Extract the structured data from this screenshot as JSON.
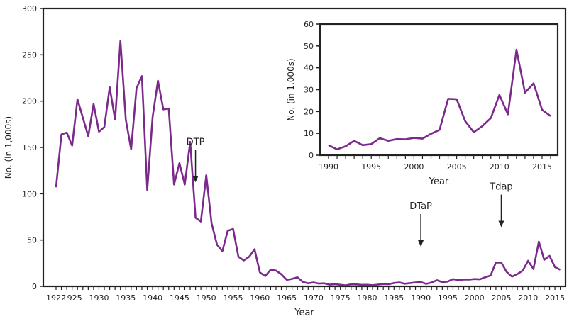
{
  "chart_data": [
    {
      "type": "line",
      "xlabel": "Year",
      "ylabel": "No. (in 1,000s)",
      "xlim": [
        1922,
        2016
      ],
      "ylim": [
        0,
        300
      ],
      "yticks": [
        "0",
        "50",
        "100",
        "150",
        "200",
        "250",
        "300"
      ],
      "xticks": [
        "1922",
        "1925",
        "1930",
        "1935",
        "1940",
        "1945",
        "1950",
        "1955",
        "1960",
        "1965",
        "1970",
        "1975",
        "1980",
        "1985",
        "1990",
        "1995",
        "2000",
        "2005",
        "2010",
        "2015"
      ],
      "grid": false,
      "line_color": "#7b2a8c",
      "annotations": [
        {
          "text": "DTP",
          "x": 1948
        },
        {
          "text": "DTaP",
          "x": 1990
        },
        {
          "text": "Tdap",
          "x": 2005
        }
      ],
      "x": [
        1922,
        1923,
        1924,
        1925,
        1926,
        1927,
        1928,
        1929,
        1930,
        1931,
        1932,
        1933,
        1934,
        1935,
        1936,
        1937,
        1938,
        1939,
        1940,
        1941,
        1942,
        1943,
        1944,
        1945,
        1946,
        1947,
        1948,
        1949,
        1950,
        1951,
        1952,
        1953,
        1954,
        1955,
        1956,
        1957,
        1958,
        1959,
        1960,
        1961,
        1962,
        1963,
        1964,
        1965,
        1966,
        1967,
        1968,
        1969,
        1970,
        1971,
        1972,
        1973,
        1974,
        1975,
        1976,
        1977,
        1978,
        1979,
        1980,
        1981,
        1982,
        1983,
        1984,
        1985,
        1986,
        1987,
        1988,
        1989,
        1990,
        1991,
        1992,
        1993,
        1994,
        1995,
        1996,
        1997,
        1998,
        1999,
        2000,
        2001,
        2002,
        2003,
        2004,
        2005,
        2006,
        2007,
        2008,
        2009,
        2010,
        2011,
        2012,
        2013,
        2014,
        2015,
        2016
      ],
      "y": [
        107,
        164,
        166,
        152,
        202,
        182,
        162,
        197,
        167,
        172,
        215,
        180,
        265,
        180,
        148,
        214,
        227,
        104,
        183,
        222,
        191,
        192,
        110,
        133,
        110,
        156,
        74,
        70,
        120,
        68,
        45,
        38,
        60,
        62,
        32,
        28,
        32,
        40,
        15,
        11,
        18,
        17,
        13,
        7,
        8,
        9.7,
        4.8,
        3.3,
        4.2,
        3.0,
        3.3,
        1.8,
        2.4,
        1.7,
        1.0,
        2.2,
        2.1,
        1.6,
        1.7,
        1.2,
        1.9,
        2.5,
        2.3,
        3.6,
        4.2,
        2.8,
        3.5,
        4.2,
        4.6,
        2.7,
        4.1,
        6.6,
        4.6,
        5.1,
        7.8,
        6.6,
        7.4,
        7.3,
        7.9,
        7.6,
        9.8,
        11.6,
        25.8,
        25.6,
        15.6,
        10.5,
        13.3,
        17.0,
        27.6,
        18.7,
        48.3,
        28.6,
        32.9,
        20.8,
        17.9
      ]
    },
    {
      "type": "line",
      "xlabel": "Year",
      "ylabel": "No. (in 1,000s)",
      "xlim": [
        1990,
        2016
      ],
      "ylim": [
        0,
        60
      ],
      "yticks": [
        "0",
        "10",
        "20",
        "30",
        "40",
        "50",
        "60"
      ],
      "xticks": [
        "1990",
        "1995",
        "2000",
        "2005",
        "2010",
        "2015"
      ],
      "grid": false,
      "line_color": "#7b2a8c",
      "x": [
        1990,
        1991,
        1992,
        1993,
        1994,
        1995,
        1996,
        1997,
        1998,
        1999,
        2000,
        2001,
        2002,
        2003,
        2004,
        2005,
        2006,
        2007,
        2008,
        2009,
        2010,
        2011,
        2012,
        2013,
        2014,
        2015,
        2016
      ],
      "y": [
        4.6,
        2.7,
        4.1,
        6.6,
        4.6,
        5.1,
        7.8,
        6.6,
        7.4,
        7.3,
        7.9,
        7.6,
        9.8,
        11.6,
        25.8,
        25.6,
        15.6,
        10.5,
        13.3,
        17.0,
        27.6,
        18.7,
        48.3,
        28.6,
        32.9,
        20.8,
        17.9
      ]
    }
  ]
}
